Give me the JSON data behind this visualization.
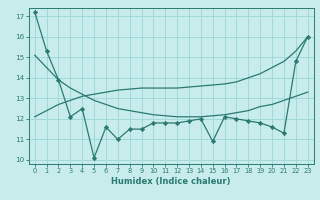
{
  "xlabel": "Humidex (Indice chaleur)",
  "bg_color": "#c8ecec",
  "grid_color": "#a0d8d8",
  "line_color": "#2a7a70",
  "xlim": [
    -0.5,
    23.5
  ],
  "ylim": [
    9.8,
    17.4
  ],
  "xticks": [
    0,
    1,
    2,
    3,
    4,
    5,
    6,
    7,
    8,
    9,
    10,
    11,
    12,
    13,
    14,
    15,
    16,
    17,
    18,
    19,
    20,
    21,
    22,
    23
  ],
  "yticks": [
    10,
    11,
    12,
    13,
    14,
    15,
    16,
    17
  ],
  "line1_x": [
    0,
    1,
    2,
    3,
    4,
    5,
    6,
    7,
    8,
    9,
    10,
    11,
    12,
    13,
    14,
    15,
    16,
    17,
    18,
    19,
    20,
    21,
    22,
    23
  ],
  "line1_y": [
    17.2,
    15.3,
    13.9,
    12.1,
    12.5,
    10.1,
    11.6,
    11.0,
    11.5,
    11.5,
    11.8,
    11.8,
    11.8,
    11.9,
    12.0,
    10.9,
    12.1,
    12.0,
    11.9,
    11.8,
    11.6,
    11.3,
    14.8,
    16.0
  ],
  "line2_x": [
    0,
    1,
    2,
    3,
    4,
    5,
    6,
    7,
    8,
    9,
    10,
    11,
    12,
    13,
    14,
    15,
    16,
    17,
    18,
    19,
    20,
    21,
    22,
    23
  ],
  "line2_y": [
    15.1,
    14.5,
    13.9,
    13.5,
    13.2,
    12.9,
    12.7,
    12.5,
    12.4,
    12.3,
    12.2,
    12.15,
    12.1,
    12.1,
    12.1,
    12.15,
    12.2,
    12.3,
    12.4,
    12.6,
    12.7,
    12.9,
    13.1,
    13.3
  ],
  "line3_x": [
    0,
    1,
    2,
    3,
    4,
    5,
    6,
    7,
    8,
    9,
    10,
    11,
    12,
    13,
    14,
    15,
    16,
    17,
    18,
    19,
    20,
    21,
    22,
    23
  ],
  "line3_y": [
    12.1,
    12.4,
    12.7,
    12.9,
    13.1,
    13.2,
    13.3,
    13.4,
    13.45,
    13.5,
    13.5,
    13.5,
    13.5,
    13.55,
    13.6,
    13.65,
    13.7,
    13.8,
    14.0,
    14.2,
    14.5,
    14.8,
    15.3,
    16.0
  ]
}
